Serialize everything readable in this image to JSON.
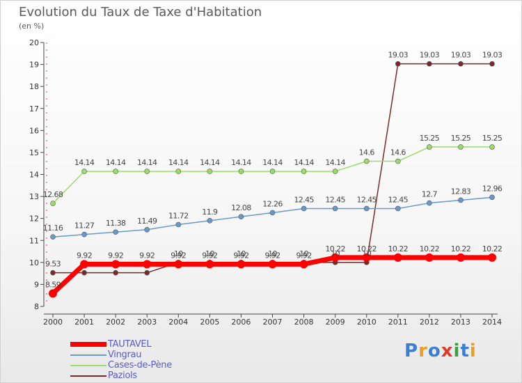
{
  "header": {
    "title": "Evolution du Taux de Taxe d'Habitation",
    "unit": "(en %)"
  },
  "logo": {
    "letters": [
      "P",
      "r",
      "o",
      "x",
      "i",
      "t",
      "i"
    ],
    "colors": [
      "#3a7fd0",
      "#e6a020",
      "#3a7fd0",
      "#e03a2a",
      "#3aa040",
      "#3a7fd0",
      "#e6a020"
    ]
  },
  "chart_data": {
    "type": "line",
    "title": "Evolution du Taux de Taxe d'Habitation",
    "ylabel": "(en %)",
    "xlabel": "",
    "x": [
      "2000",
      "2001",
      "2002",
      "2003",
      "2004",
      "2005",
      "2006",
      "2007",
      "2008",
      "2009",
      "2010",
      "2011",
      "2012",
      "2013",
      "2014"
    ],
    "ylim": [
      8,
      20
    ],
    "yticks": [
      8,
      9,
      10,
      11,
      12,
      13,
      14,
      15,
      16,
      17,
      18,
      19,
      20
    ],
    "grid": false,
    "legend_position": "bottom-left",
    "series": [
      {
        "name": "TAUTAVEL",
        "color": "#ff0000",
        "values": [
          8.59,
          9.92,
          9.92,
          9.92,
          9.92,
          9.92,
          9.92,
          9.92,
          9.92,
          10.22,
          10.22,
          10.22,
          10.22,
          10.22,
          10.22
        ],
        "labels": [
          "8.59",
          "9.92",
          "9.92",
          "9.92",
          "9.92",
          "9.92",
          "9.92",
          "9.92",
          "9.92",
          "10.22",
          "10.22",
          "10.22",
          "10.22",
          "10.22",
          "10.22"
        ]
      },
      {
        "name": "Vingrau",
        "color": "#6699cc",
        "values": [
          11.16,
          11.27,
          11.38,
          11.49,
          11.72,
          11.9,
          12.08,
          12.26,
          12.45,
          12.45,
          12.45,
          12.45,
          12.7,
          12.83,
          12.96
        ],
        "labels": [
          "11.16",
          "11.27",
          "11.38",
          "11.49",
          "11.72",
          "11.9",
          "12.08",
          "12.26",
          "12.45",
          "12.45",
          "12.45",
          "12.45",
          "12.7",
          "12.83",
          "12.96"
        ]
      },
      {
        "name": "Cases-de-Pène",
        "color": "#99dd66",
        "values": [
          12.68,
          14.14,
          14.14,
          14.14,
          14.14,
          14.14,
          14.14,
          14.14,
          14.14,
          14.14,
          14.6,
          14.6,
          15.25,
          15.25,
          15.25
        ],
        "labels": [
          "12.68",
          "14.14",
          "14.14",
          "14.14",
          "14.14",
          "14.14",
          "14.14",
          "14.14",
          "14.14",
          "14.14",
          "14.6",
          "14.6",
          "15.25",
          "15.25",
          "15.25"
        ]
      },
      {
        "name": "Paziols",
        "color": "#7a2a2a",
        "values": [
          9.53,
          9.53,
          9.53,
          9.53,
          10,
          10,
          10,
          10,
          10,
          10,
          10,
          19.03,
          19.03,
          19.03,
          19.03
        ],
        "labels": [
          "9.53",
          "",
          "",
          "",
          "10",
          "10",
          "10",
          "10",
          "10",
          "10",
          "10",
          "19.03",
          "19.03",
          "19.03",
          "19.03"
        ]
      }
    ]
  }
}
